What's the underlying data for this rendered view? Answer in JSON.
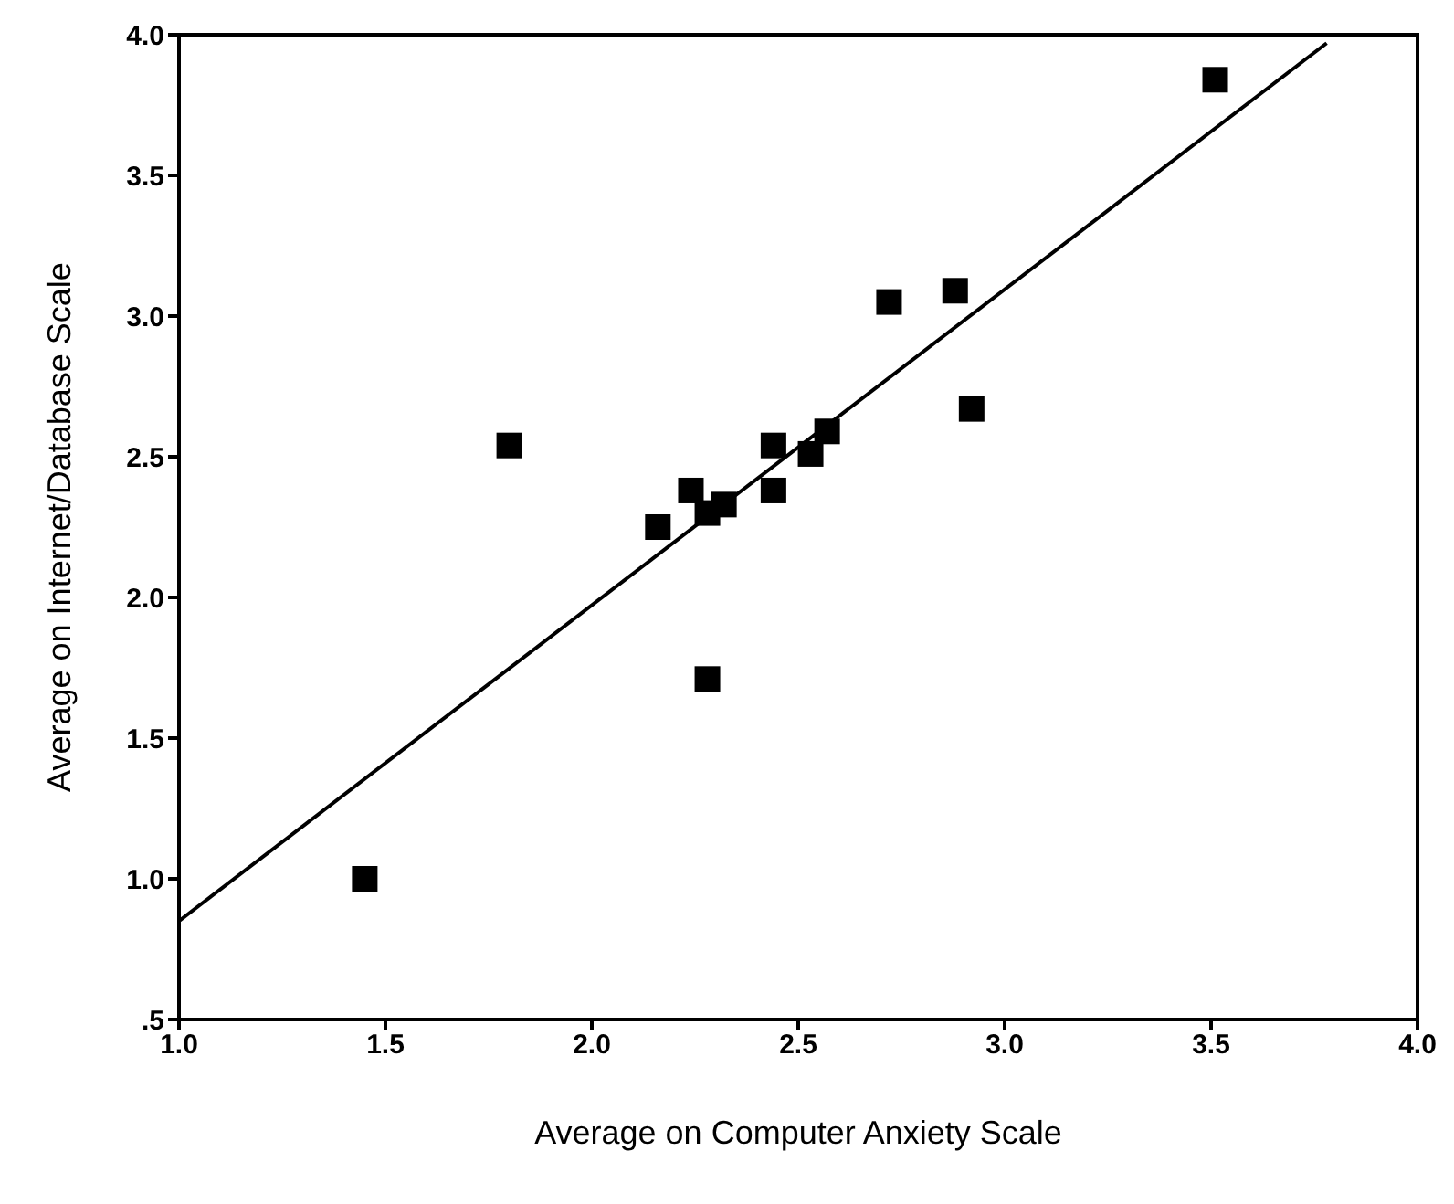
{
  "chart_data": {
    "type": "scatter",
    "xlabel": "Average on Computer Anxiety Scale",
    "ylabel": "Average on Internet/Database Scale",
    "xlim": [
      1.0,
      4.0
    ],
    "xticks": [
      {
        "value": 1,
        "label": "1.0"
      },
      {
        "value": 1.5,
        "label": "1.5"
      },
      {
        "value": 2,
        "label": "2.0"
      },
      {
        "value": 2.5,
        "label": "2.5"
      },
      {
        "value": 3,
        "label": "3.0"
      },
      {
        "value": 3.5,
        "label": "3.5"
      },
      {
        "value": 4,
        "label": "4.0"
      }
    ],
    "ylim": [
      0.5,
      4.0
    ],
    "yticks": [
      {
        "value": 0.5,
        "label": ".5"
      },
      {
        "value": 1,
        "label": "1.0"
      },
      {
        "value": 1.5,
        "label": "1.5"
      },
      {
        "value": 2,
        "label": "2.0"
      },
      {
        "value": 2.5,
        "label": "2.5"
      },
      {
        "value": 3,
        "label": "3.0"
      },
      {
        "value": 3.5,
        "label": "3.5"
      },
      {
        "value": 4,
        "label": "4.0"
      }
    ],
    "grid": false,
    "legend": false,
    "marker": "square",
    "series": [
      {
        "color": "#000000",
        "x": [
          1.45,
          1.8,
          2.16,
          2.24,
          2.28,
          2.28,
          2.32,
          2.44,
          2.44,
          2.53,
          2.57,
          2.72,
          2.88,
          2.92,
          3.51
        ],
        "values": [
          1.0,
          2.54,
          2.25,
          2.38,
          2.3,
          1.71,
          2.33,
          2.54,
          2.38,
          2.51,
          2.59,
          3.05,
          3.09,
          2.67,
          3.84
        ]
      },
      {
        "type": "line",
        "color": "#000000",
        "marker": "none",
        "x": [
          1.0,
          3.78
        ],
        "values": [
          0.85,
          3.97
        ]
      }
    ]
  }
}
